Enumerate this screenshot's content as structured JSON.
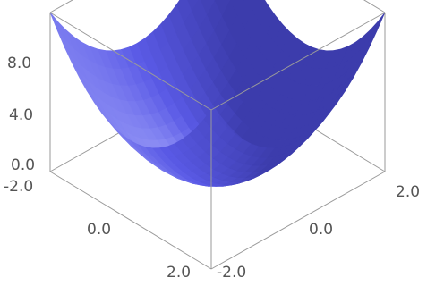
{
  "chart_data": {
    "type": "surface",
    "function": "z = x^2 + y^2",
    "title": "",
    "xlim": [
      -2.0,
      2.0
    ],
    "ylim": [
      -2.0,
      2.0
    ],
    "zlim": [
      0.0,
      8.0
    ],
    "x_ticks": [
      "-2.0",
      "0.0",
      "2.0"
    ],
    "y_ticks": [
      "-2.0",
      "0.0",
      "2.0"
    ],
    "z_ticks": [
      "0.0",
      "4.0",
      "8.0"
    ],
    "surface_color": "#5a5ae6",
    "surface_light_color": "#8a8cf5",
    "surface_dark_color": "#3c3cac",
    "grid": false,
    "bounding_box": true,
    "grid_resolution": 22
  }
}
